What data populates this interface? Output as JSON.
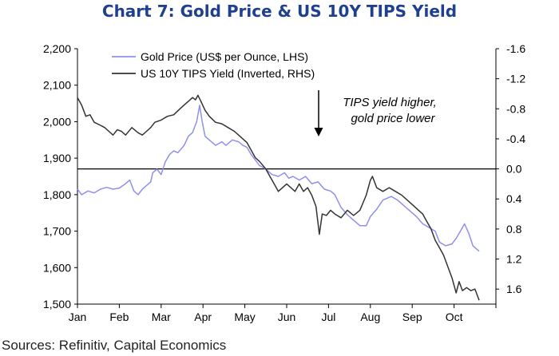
{
  "header": {
    "title": "Chart 7: Gold Price & US 10Y TIPS Yield"
  },
  "footer": {
    "source": "Sources: Refinitiv, Capital Economics"
  },
  "chart_data": {
    "type": "line",
    "x_tick_labels": [
      "Jan",
      "Feb",
      "Mar",
      "Apr",
      "May",
      "Jun",
      "Jul",
      "Aug",
      "Sep",
      "Oct"
    ],
    "left_axis": {
      "ticks": [
        "2,200",
        "2,100",
        "2,000",
        "1,900",
        "1,800",
        "1,700",
        "1,600",
        "1,500"
      ],
      "ylim": [
        1500,
        2200
      ]
    },
    "right_axis": {
      "ticks": [
        "-1.6",
        "-1.2",
        "-0.8",
        "-0.4",
        "0.0",
        "0.4",
        "0.8",
        "1.2",
        "1.6"
      ],
      "ylim": [
        1.8,
        -1.6
      ],
      "inverted": true
    },
    "annotation": {
      "line1": "TIPS yield higher,",
      "line2": "gold price lower"
    },
    "legend_position": "top-left",
    "series": [
      {
        "name": "Gold Price (US$ per Ounce, LHS)",
        "axis": "left",
        "color": "#8f8ff0",
        "points": [
          [
            0,
            1815
          ],
          [
            0.1,
            1800
          ],
          [
            0.25,
            1810
          ],
          [
            0.4,
            1805
          ],
          [
            0.55,
            1815
          ],
          [
            0.7,
            1820
          ],
          [
            0.85,
            1815
          ],
          [
            1.0,
            1818
          ],
          [
            1.15,
            1830
          ],
          [
            1.25,
            1840
          ],
          [
            1.35,
            1810
          ],
          [
            1.45,
            1800
          ],
          [
            1.55,
            1815
          ],
          [
            1.65,
            1825
          ],
          [
            1.75,
            1835
          ],
          [
            1.8,
            1860
          ],
          [
            1.9,
            1870
          ],
          [
            2.0,
            1855
          ],
          [
            2.1,
            1890
          ],
          [
            2.2,
            1910
          ],
          [
            2.3,
            1920
          ],
          [
            2.4,
            1915
          ],
          [
            2.55,
            1935
          ],
          [
            2.65,
            1960
          ],
          [
            2.75,
            1970
          ],
          [
            2.85,
            2000
          ],
          [
            2.92,
            2045
          ],
          [
            2.98,
            2000
          ],
          [
            3.05,
            1960
          ],
          [
            3.15,
            1950
          ],
          [
            3.3,
            1935
          ],
          [
            3.45,
            1945
          ],
          [
            3.55,
            1935
          ],
          [
            3.7,
            1950
          ],
          [
            3.85,
            1945
          ],
          [
            3.95,
            1935
          ],
          [
            4.05,
            1930
          ],
          [
            4.15,
            1910
          ],
          [
            4.25,
            1895
          ],
          [
            4.35,
            1880
          ],
          [
            4.5,
            1870
          ],
          [
            4.65,
            1855
          ],
          [
            4.8,
            1850
          ],
          [
            4.95,
            1860
          ],
          [
            5.05,
            1845
          ],
          [
            5.15,
            1850
          ],
          [
            5.3,
            1840
          ],
          [
            5.45,
            1850
          ],
          [
            5.6,
            1830
          ],
          [
            5.75,
            1835
          ],
          [
            5.9,
            1815
          ],
          [
            6.05,
            1810
          ],
          [
            6.15,
            1800
          ],
          [
            6.3,
            1765
          ],
          [
            6.45,
            1745
          ],
          [
            6.6,
            1730
          ],
          [
            6.75,
            1715
          ],
          [
            6.9,
            1715
          ],
          [
            7.0,
            1740
          ],
          [
            7.15,
            1760
          ],
          [
            7.3,
            1785
          ],
          [
            7.5,
            1795
          ],
          [
            7.65,
            1785
          ],
          [
            7.8,
            1770
          ],
          [
            7.95,
            1755
          ],
          [
            8.1,
            1740
          ],
          [
            8.25,
            1720
          ],
          [
            8.4,
            1710
          ],
          [
            8.55,
            1700
          ],
          [
            8.65,
            1670
          ],
          [
            8.8,
            1660
          ],
          [
            8.95,
            1665
          ],
          [
            9.05,
            1680
          ],
          [
            9.15,
            1700
          ],
          [
            9.25,
            1720
          ],
          [
            9.35,
            1695
          ],
          [
            9.45,
            1660
          ],
          [
            9.55,
            1650
          ],
          [
            9.6,
            1645
          ]
        ]
      },
      {
        "name": "US 10Y TIPS Yield (Inverted, RHS)",
        "axis": "right",
        "color": "#333333",
        "points": [
          [
            0,
            -0.95
          ],
          [
            0.1,
            -0.85
          ],
          [
            0.2,
            -0.7
          ],
          [
            0.3,
            -0.72
          ],
          [
            0.4,
            -0.62
          ],
          [
            0.55,
            -0.58
          ],
          [
            0.65,
            -0.55
          ],
          [
            0.75,
            -0.5
          ],
          [
            0.85,
            -0.45
          ],
          [
            0.95,
            -0.52
          ],
          [
            1.05,
            -0.5
          ],
          [
            1.15,
            -0.45
          ],
          [
            1.3,
            -0.55
          ],
          [
            1.45,
            -0.48
          ],
          [
            1.55,
            -0.45
          ],
          [
            1.65,
            -0.5
          ],
          [
            1.75,
            -0.55
          ],
          [
            1.85,
            -0.62
          ],
          [
            2.0,
            -0.65
          ],
          [
            2.15,
            -0.7
          ],
          [
            2.3,
            -0.72
          ],
          [
            2.45,
            -0.8
          ],
          [
            2.55,
            -0.85
          ],
          [
            2.65,
            -0.9
          ],
          [
            2.75,
            -0.95
          ],
          [
            2.82,
            -0.92
          ],
          [
            2.88,
            -0.98
          ],
          [
            2.95,
            -0.9
          ],
          [
            3.05,
            -0.78
          ],
          [
            3.15,
            -0.7
          ],
          [
            3.3,
            -0.62
          ],
          [
            3.45,
            -0.6
          ],
          [
            3.6,
            -0.55
          ],
          [
            3.75,
            -0.5
          ],
          [
            3.85,
            -0.45
          ],
          [
            3.95,
            -0.4
          ],
          [
            4.05,
            -0.35
          ],
          [
            4.15,
            -0.25
          ],
          [
            4.25,
            -0.15
          ],
          [
            4.35,
            -0.1
          ],
          [
            4.5,
            0.0
          ],
          [
            4.6,
            0.1
          ],
          [
            4.7,
            0.2
          ],
          [
            4.8,
            0.3
          ],
          [
            4.9,
            0.25
          ],
          [
            5.0,
            0.2
          ],
          [
            5.1,
            0.25
          ],
          [
            5.2,
            0.3
          ],
          [
            5.3,
            0.2
          ],
          [
            5.4,
            0.3
          ],
          [
            5.5,
            0.25
          ],
          [
            5.6,
            0.35
          ],
          [
            5.7,
            0.5
          ],
          [
            5.78,
            0.87
          ],
          [
            5.85,
            0.6
          ],
          [
            5.95,
            0.62
          ],
          [
            6.05,
            0.55
          ],
          [
            6.15,
            0.6
          ],
          [
            6.3,
            0.65
          ],
          [
            6.45,
            0.55
          ],
          [
            6.6,
            0.62
          ],
          [
            6.75,
            0.55
          ],
          [
            6.9,
            0.35
          ],
          [
            7.0,
            0.15
          ],
          [
            7.05,
            0.1
          ],
          [
            7.15,
            0.25
          ],
          [
            7.3,
            0.3
          ],
          [
            7.45,
            0.25
          ],
          [
            7.6,
            0.3
          ],
          [
            7.75,
            0.35
          ],
          [
            7.85,
            0.4
          ],
          [
            7.95,
            0.45
          ],
          [
            8.05,
            0.5
          ],
          [
            8.15,
            0.55
          ],
          [
            8.25,
            0.6
          ],
          [
            8.35,
            0.7
          ],
          [
            8.45,
            0.8
          ],
          [
            8.55,
            0.95
          ],
          [
            8.65,
            1.05
          ],
          [
            8.75,
            1.15
          ],
          [
            8.85,
            1.3
          ],
          [
            8.95,
            1.45
          ],
          [
            9.05,
            1.65
          ],
          [
            9.12,
            1.5
          ],
          [
            9.2,
            1.62
          ],
          [
            9.3,
            1.58
          ],
          [
            9.4,
            1.62
          ],
          [
            9.5,
            1.6
          ],
          [
            9.6,
            1.75
          ]
        ]
      }
    ]
  }
}
